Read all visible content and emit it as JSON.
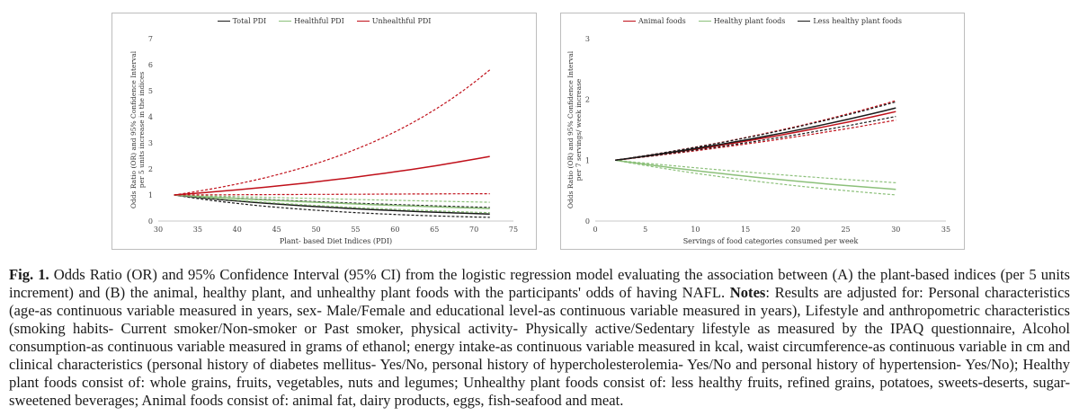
{
  "chart_data": [
    {
      "type": "line",
      "panel": "A",
      "title": "",
      "xlabel": "Plant- based Diet Indices (PDI)",
      "ylabel": "Odds Ratio (OR) and 95% Confidence Interval per 5 units increase in the indices",
      "xlim": [
        30,
        75
      ],
      "ylim": [
        0,
        7
      ],
      "xticks": [
        "30",
        "35",
        "40",
        "45",
        "50",
        "55",
        "60",
        "65",
        "70",
        "75"
      ],
      "yticks": [
        "0",
        "1",
        "2",
        "3",
        "4",
        "5",
        "6",
        "7"
      ],
      "legend_position": "top",
      "legend": [
        "Total PDI",
        "Healthful PDI",
        "Unhealthful PDI"
      ],
      "series": [
        {
          "name": "Total PDI",
          "color": "#1a1a1a",
          "x": [
            32,
            72
          ],
          "values": [
            1,
            0.27
          ],
          "ci_lower": [
            1,
            0.14
          ],
          "ci_upper": [
            1,
            0.52
          ]
        },
        {
          "name": "Healthful PDI",
          "color": "#8cc07a",
          "x": [
            32,
            72
          ],
          "values": [
            1,
            0.48
          ],
          "ci_lower": [
            1,
            0.32
          ],
          "ci_upper": [
            1,
            0.72
          ]
        },
        {
          "name": "Unhealthful PDI",
          "color": "#c0101a",
          "x": [
            32,
            72
          ],
          "values": [
            1,
            2.48
          ],
          "ci_lower": [
            1,
            1.05
          ],
          "ci_upper": [
            1,
            5.8
          ]
        }
      ]
    },
    {
      "type": "line",
      "panel": "B",
      "title": "",
      "xlabel": "Servings of food categories consumed per week",
      "ylabel": "Odds Ratio (OR) and 95% Confidence Interval per 7 servings/ week increase",
      "xlim": [
        0,
        35
      ],
      "ylim": [
        0,
        3
      ],
      "xticks": [
        "0",
        "5",
        "10",
        "15",
        "20",
        "25",
        "30",
        "35"
      ],
      "yticks": [
        "0",
        "1",
        "2",
        "3"
      ],
      "legend_position": "top",
      "legend": [
        "Animal foods",
        "Healthy plant foods",
        "Less healthy plant foods"
      ],
      "series": [
        {
          "name": "Animal foods",
          "color": "#c0101a",
          "x": [
            2,
            30
          ],
          "values": [
            1,
            1.8
          ],
          "ci_lower": [
            1,
            1.66
          ],
          "ci_upper": [
            1,
            1.98
          ]
        },
        {
          "name": "Healthy plant foods",
          "color": "#8cc07a",
          "x": [
            2,
            30
          ],
          "values": [
            1,
            0.52
          ],
          "ci_lower": [
            1,
            0.43
          ],
          "ci_upper": [
            1,
            0.63
          ]
        },
        {
          "name": "Less healthy plant foods",
          "color": "#1a1a1a",
          "x": [
            2,
            30
          ],
          "values": [
            1,
            1.86
          ],
          "ci_lower": [
            1,
            1.72
          ],
          "ci_upper": [
            1,
            1.96
          ]
        }
      ]
    }
  ],
  "caption": {
    "label": "Fig. 1.",
    "part1": " Odds Ratio (OR) and 95% Confidence Interval (95% CI) from the logistic regression model evaluating the association between (A) the plant-based indices (per 5 units increment) and (B) the animal, healthy plant, and unhealthy plant foods with the participants' odds of having NAFL. ",
    "notes_label": "Notes",
    "part2": ": Results are adjusted for: Personal characteristics (age-as continuous variable measured in years, sex- Male/Female and educational level-as continuous variable measured in years), Lifestyle and anthropometric characteristics (smoking habits- Current smoker/Non-smoker or Past smoker, physical activity- Physically active/Sedentary lifestyle as measured by the IPAQ questionnaire, Alcohol consumption-as continuous variable measured in grams of ethanol; energy intake-as continuous variable measured in kcal, waist circumference-as continuous variable in cm and clinical characteristics (personal history of diabetes mellitus- Yes/No, personal history of hypercholesterolemia- Yes/No and personal history of hypertension- Yes/No); Healthy plant foods consist of: whole grains, fruits, vegetables, nuts and legumes; Unhealthy plant foods consist of: less healthy fruits, refined grains, potatoes, sweets-deserts, sugar-sweetened beverages; Animal foods consist of: animal fat, dairy products, eggs, fish-seafood and meat."
  }
}
